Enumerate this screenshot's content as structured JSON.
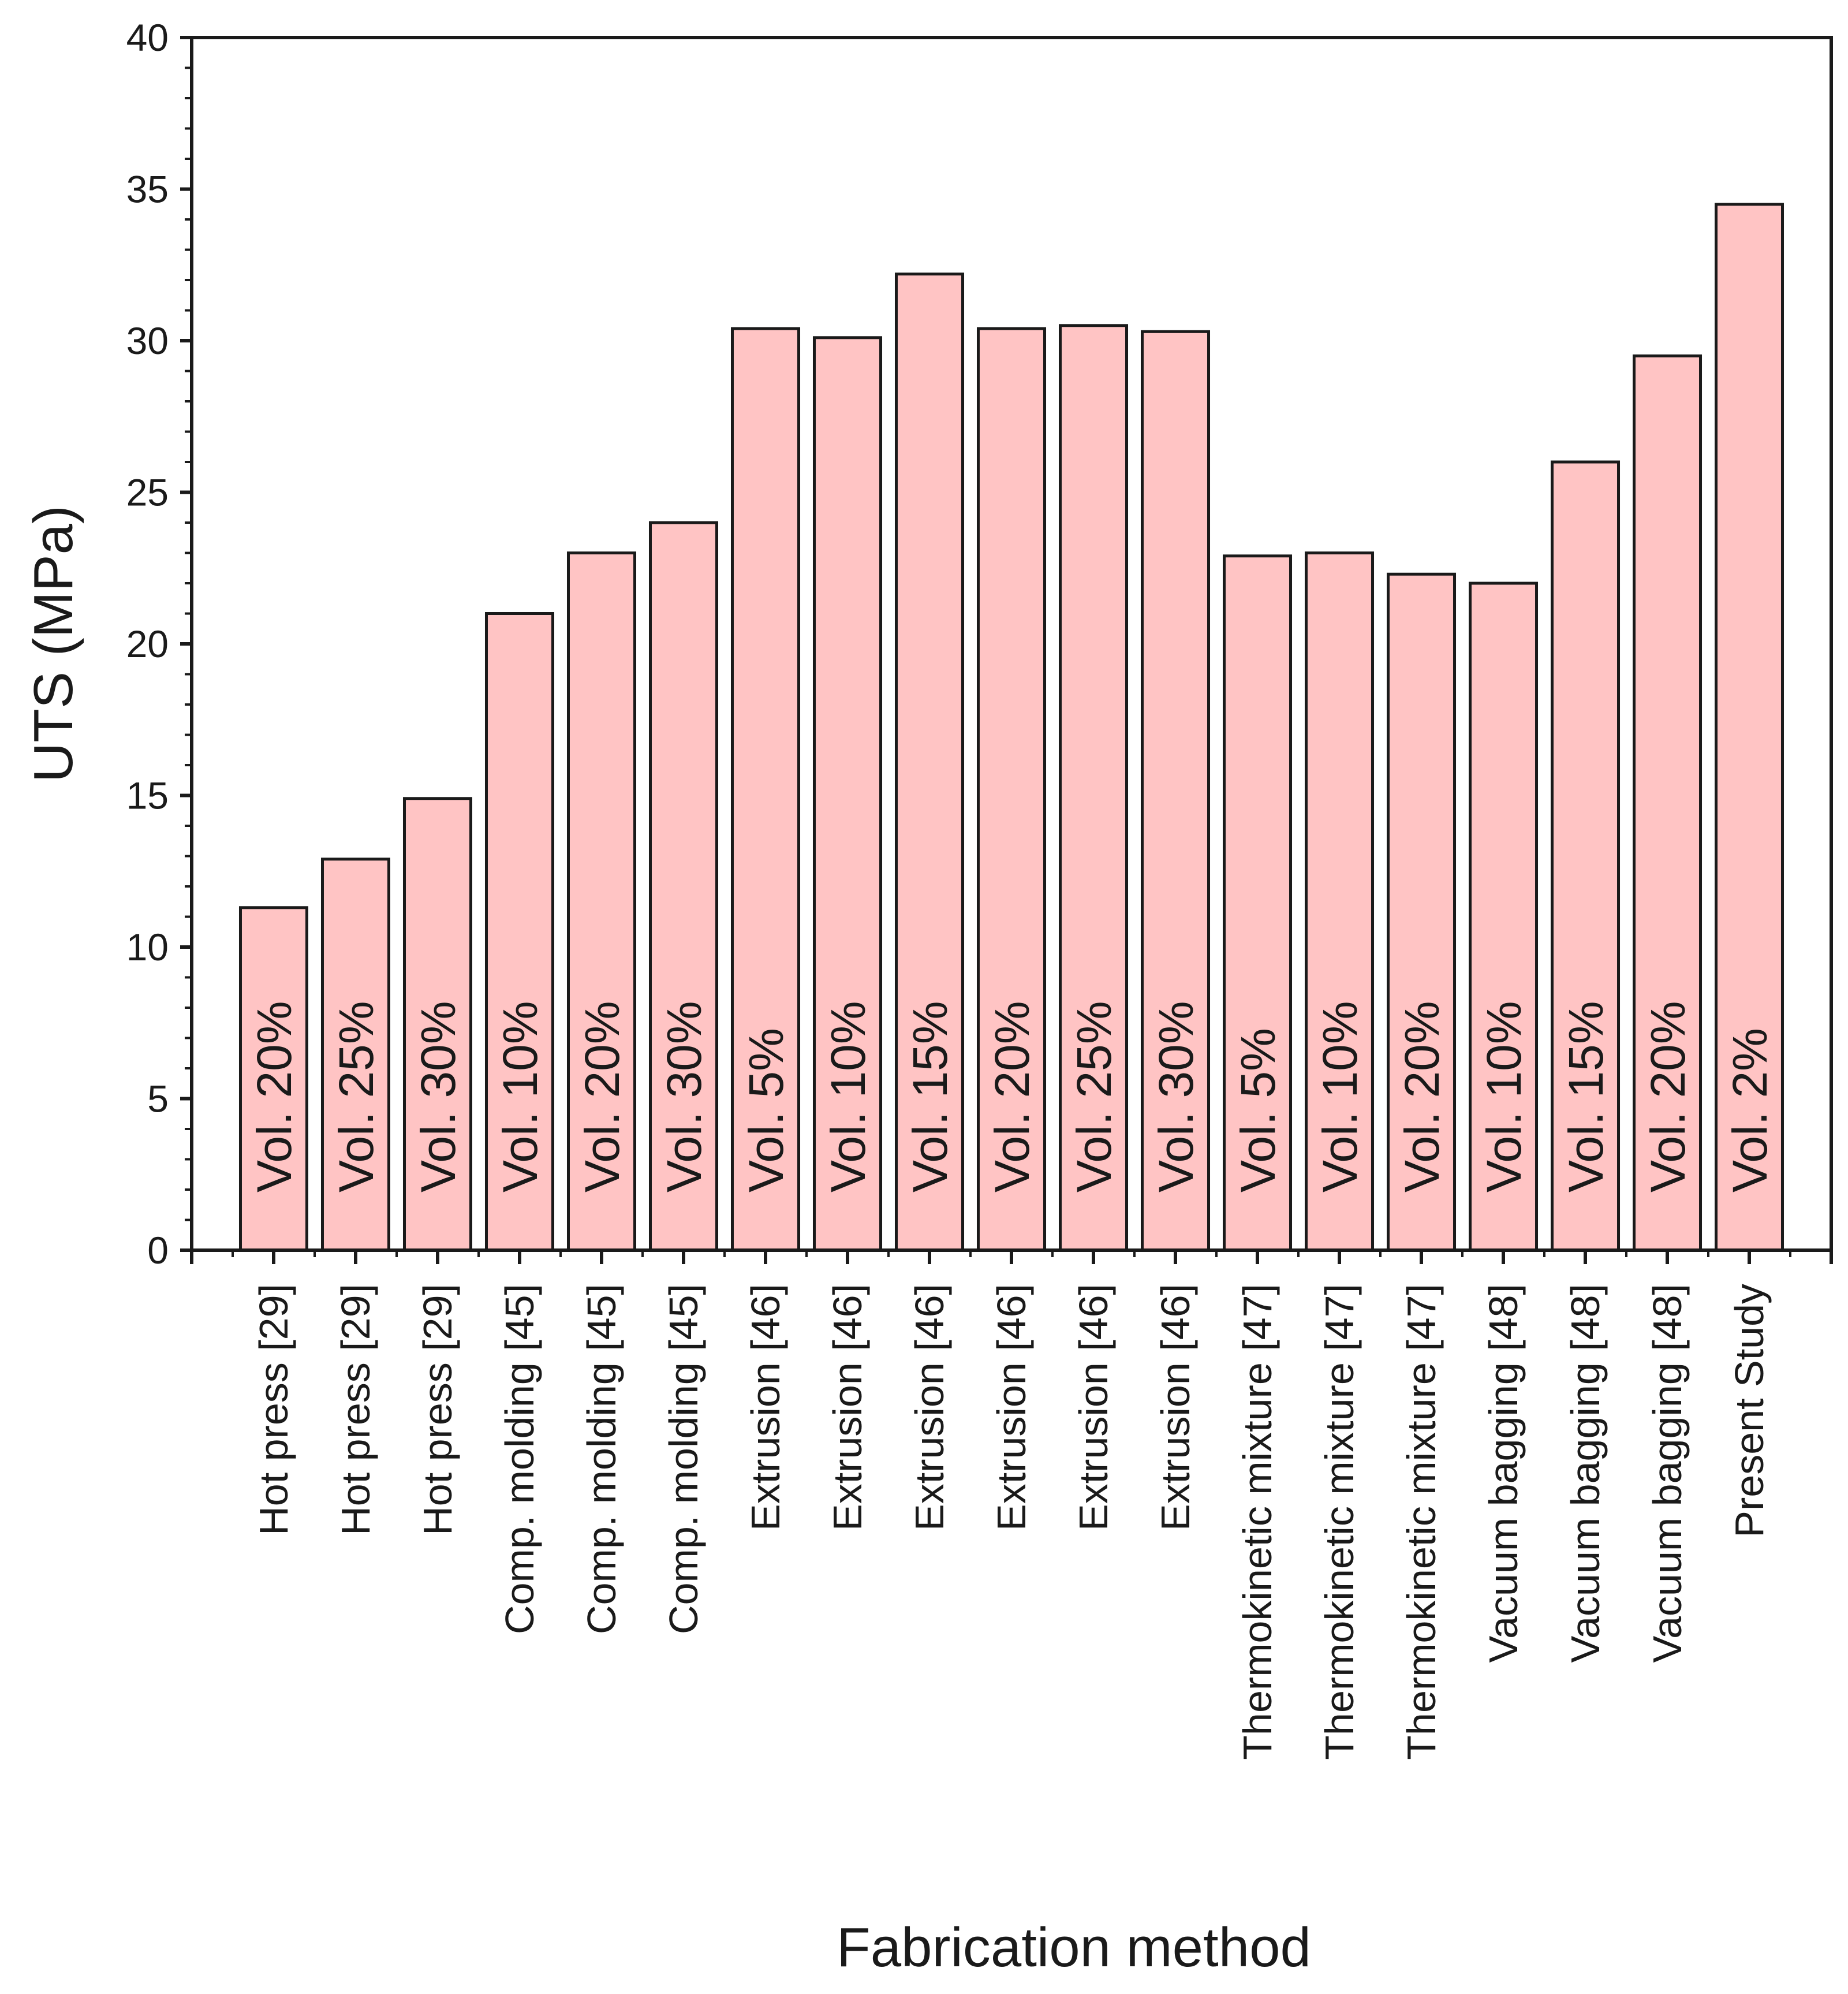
{
  "chart_data": {
    "type": "bar",
    "title": "",
    "xlabel": "Fabrication method",
    "ylabel": "UTS (MPa)",
    "ylim": [
      0,
      40
    ],
    "yticks": [
      "0",
      "5",
      "10",
      "15",
      "20",
      "25",
      "30",
      "35",
      "40"
    ],
    "grid": false,
    "bar_color": "#ffc4c4",
    "bar_edge_color": "#1a1a1a",
    "categories": [
      "Hot press [29]",
      "Hot press [29]",
      "Hot press [29]",
      "Comp. molding [45]",
      "Comp. molding [45]",
      "Comp. molding [45]",
      "Extrusion [46]",
      "Extrusion [46]",
      "Extrusion [46]",
      "Extrusion [46]",
      "Extrusion [46]",
      "Extrusion [46]",
      "Thermokinetic mixture [47]",
      "Thermokinetic mixture [47]",
      "Thermokinetic mixture [47]",
      "Vacuum bagging  [48]",
      "Vacuum bagging  [48]",
      "Vacuum bagging  [48]",
      "Present Study"
    ],
    "bar_labels": [
      "Vol. 20%",
      "Vol. 25%",
      "Vol. 30%",
      "Vol. 10%",
      "Vol. 20%",
      "Vol. 30%",
      "Vol. 5%",
      "Vol. 10%",
      "Vol. 15%",
      "Vol. 20%",
      "Vol. 25%",
      "Vol. 30%",
      "Vol. 5%",
      "Vol. 10%",
      "Vol. 20%",
      "Vol. 10%",
      "Vol. 15%",
      "Vol. 20%",
      "Vol. 2%"
    ],
    "values": [
      11.3,
      12.9,
      14.9,
      21.0,
      23.0,
      24.0,
      30.4,
      30.1,
      32.2,
      30.4,
      30.5,
      30.3,
      22.9,
      23.0,
      22.3,
      22.0,
      26.0,
      29.5,
      34.5
    ]
  }
}
